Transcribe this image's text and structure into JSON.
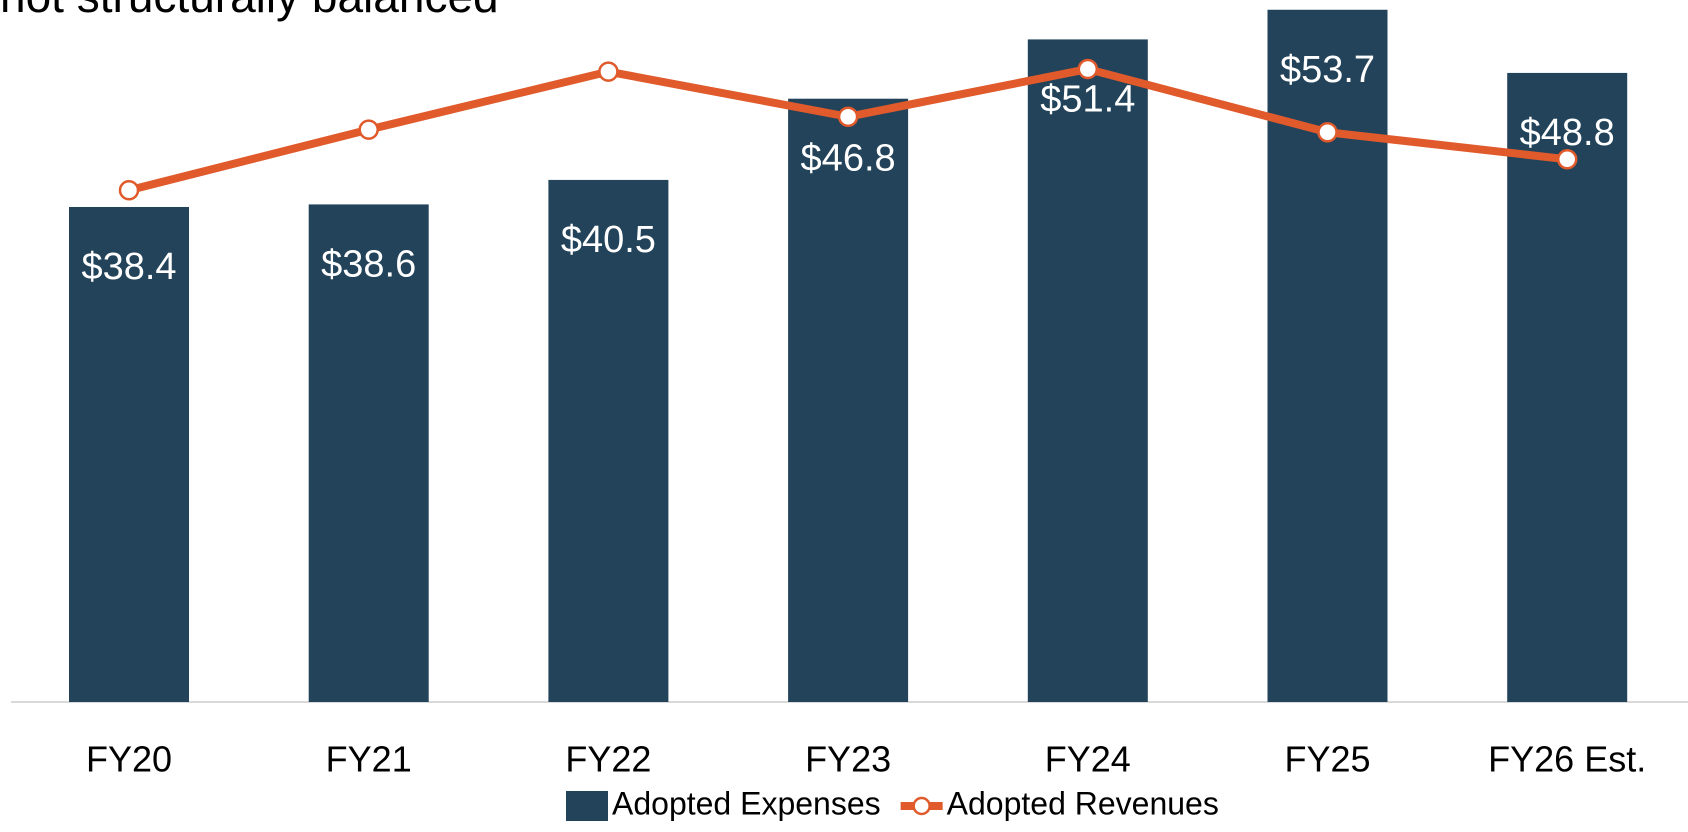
{
  "chart_data": {
    "type": "bar_line",
    "title": "not structurally balanced",
    "categories": [
      "FY20",
      "FY21",
      "FY22",
      "FY23",
      "FY24",
      "FY25",
      "FY26 Est."
    ],
    "series": [
      {
        "name": "Adopted Expenses",
        "type": "bar",
        "color": "#22435a",
        "values": [
          38.4,
          38.6,
          40.5,
          46.8,
          51.4,
          53.7,
          48.8
        ],
        "value_labels": [
          "$38.4",
          "$38.6",
          "$40.5",
          "$46.8",
          "$51.4",
          "$53.7",
          "$48.8"
        ]
      },
      {
        "name": "Adopted Revenues",
        "type": "line",
        "color": "#e05a2b",
        "values": [
          39.7,
          44.4,
          48.9,
          45.4,
          49.1,
          44.2,
          42.1
        ]
      }
    ],
    "ylim": [
      0,
      55
    ],
    "legend": "bottom"
  }
}
